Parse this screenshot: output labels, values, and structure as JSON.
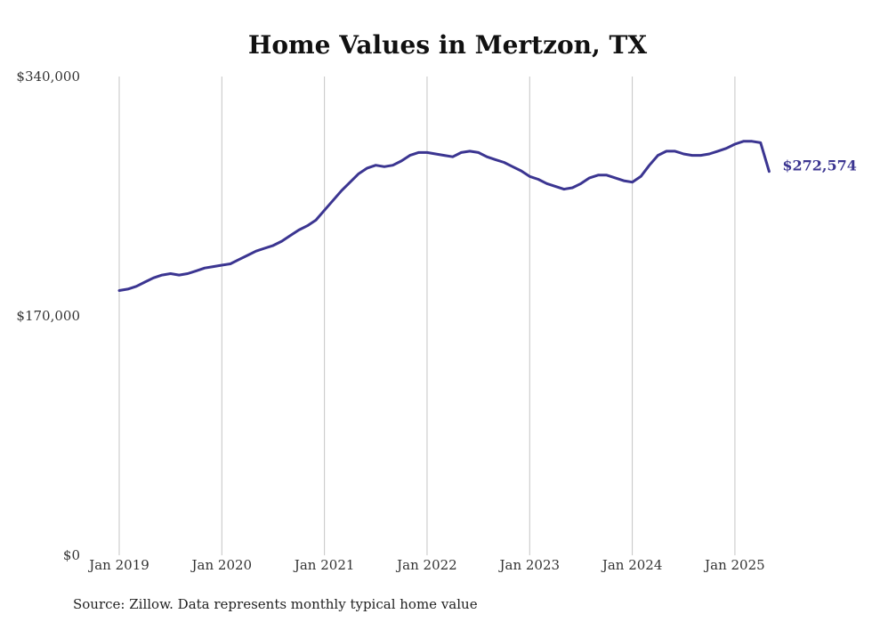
{
  "chart_data": {
    "type": "line",
    "title": "Home Values in Mertzon, TX",
    "source": "Source: Zillow. Data represents monthly typical home value",
    "x_start": "2019-01",
    "x_end": "2025-06",
    "x_ticks": [
      "Jan 2019",
      "Jan 2020",
      "Jan 2021",
      "Jan 2022",
      "Jan 2023",
      "Jan 2024",
      "Jan 2025"
    ],
    "y_ticks": [
      "$0",
      "$170,000",
      "$340,000"
    ],
    "ylim": [
      0,
      340000
    ],
    "grid": "vertical",
    "line_color": "#3b3591",
    "end_label": "$272,574",
    "series": [
      {
        "values": [
          188000,
          189000,
          191000,
          194000,
          197000,
          199000,
          200000,
          199000,
          200000,
          202000,
          204000,
          205000,
          206000,
          207000,
          210000,
          213000,
          216000,
          218000,
          220000,
          223000,
          227000,
          231000,
          234000,
          238000,
          245000,
          252000,
          259000,
          265000,
          271000,
          275000,
          277000,
          276000,
          277000,
          280000,
          284000,
          286000,
          286000,
          285000,
          284000,
          283000,
          286000,
          287000,
          286000,
          283000,
          281000,
          279000,
          276000,
          273000,
          269000,
          267000,
          264000,
          262000,
          260000,
          261000,
          264000,
          268000,
          270000,
          270000,
          268000,
          266000,
          265000,
          269000,
          277000,
          284000,
          287000,
          287000,
          285000,
          284000,
          284000,
          285000,
          287000,
          289000,
          292000,
          294000,
          294000,
          293000,
          272574
        ]
      }
    ]
  }
}
